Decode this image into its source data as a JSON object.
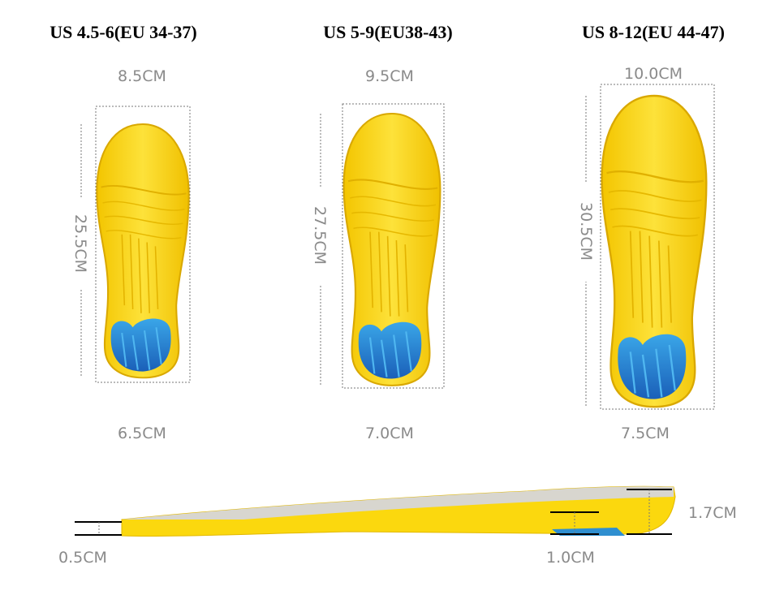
{
  "sizes": [
    {
      "title": "US 4.5-6(EU 34-37)",
      "top_width": "8.5CM",
      "length": "25.5CM",
      "heel_width": "6.5CM"
    },
    {
      "title": "US 5-9(EU38-43)",
      "top_width": "9.5CM",
      "length": "27.5CM",
      "heel_width": "7.0CM"
    },
    {
      "title": "US 8-12(EU 44-47)",
      "top_width": "10.0CM",
      "length": "30.5CM",
      "heel_width": "7.5CM"
    }
  ],
  "side_view": {
    "toe_thickness": "0.5CM",
    "arch_thickness": "1.0CM",
    "heel_thickness": "1.7CM"
  }
}
